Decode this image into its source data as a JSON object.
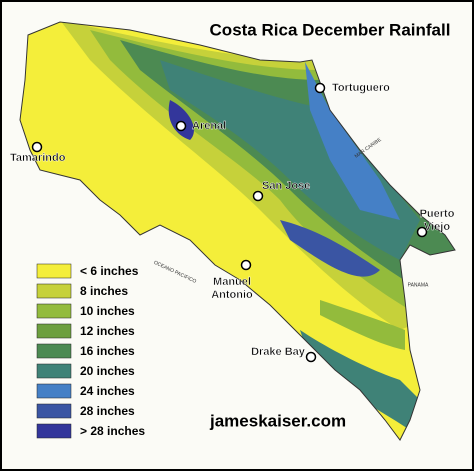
{
  "title": "Costa Rica December Rainfall",
  "website": "jameskaiser.com",
  "legend": [
    {
      "label": "< 6 inches",
      "color": "#f4ee3a"
    },
    {
      "label": "8 inches",
      "color": "#c6d13a"
    },
    {
      "label": "10 inches",
      "color": "#93bb3c"
    },
    {
      "label": "12 inches",
      "color": "#6d9f3e"
    },
    {
      "label": "16 inches",
      "color": "#4c8a52"
    },
    {
      "label": "20 inches",
      "color": "#3f8277"
    },
    {
      "label": "24 inches",
      "color": "#4580c6"
    },
    {
      "label": "28 inches",
      "color": "#3a55a3"
    },
    {
      "label": "> 28 inches",
      "color": "#33369b"
    }
  ],
  "places": [
    "Tortuguero",
    "Arenal",
    "Tamarindo",
    "San Jose",
    "Puerto Viejo",
    "Manuel Antonio",
    "Drake Bay"
  ],
  "map_labels": [
    "MAR CARIBE",
    "OCEANO PACIFICO",
    "PANAMA"
  ]
}
